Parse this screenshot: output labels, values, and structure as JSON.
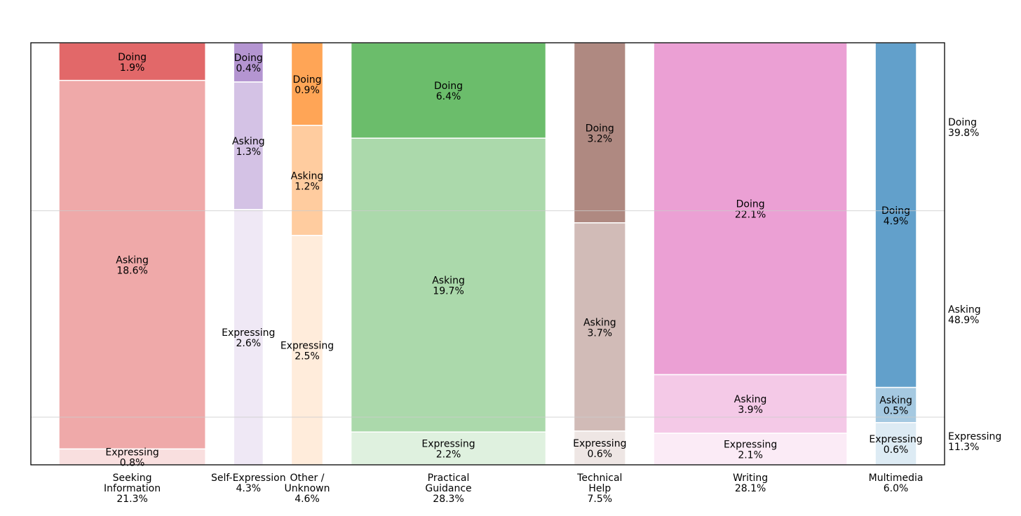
{
  "chart_data": {
    "type": "mosaic",
    "title": "",
    "categories": [
      {
        "name": "Seeking Information",
        "label_lines": [
          "Seeking",
          "Information"
        ],
        "total_label": "21.3%",
        "total": 21.3,
        "color": "#d62728",
        "segments": {
          "Doing": {
            "value": 1.9,
            "label": "1.9%"
          },
          "Asking": {
            "value": 18.6,
            "label": "18.6%"
          },
          "Expressing": {
            "value": 0.8,
            "label": "0.8%"
          }
        }
      },
      {
        "name": "Self-Expression",
        "label_lines": [
          "Self-Expression"
        ],
        "total_label": "4.3%",
        "total": 4.3,
        "color": "#9467bd",
        "segments": {
          "Doing": {
            "value": 0.4,
            "label": "0.4%"
          },
          "Asking": {
            "value": 1.3,
            "label": "1.3%"
          },
          "Expressing": {
            "value": 2.6,
            "label": "2.6%"
          }
        }
      },
      {
        "name": "Other / Unknown",
        "label_lines": [
          "Other /",
          "Unknown"
        ],
        "total_label": "4.6%",
        "total": 4.6,
        "color": "#ff7f0e",
        "segments": {
          "Doing": {
            "value": 0.9,
            "label": "0.9%"
          },
          "Asking": {
            "value": 1.2,
            "label": "1.2%"
          },
          "Expressing": {
            "value": 2.5,
            "label": "2.5%"
          }
        }
      },
      {
        "name": "Practical Guidance",
        "label_lines": [
          "Practical",
          "Guidance"
        ],
        "total_label": "28.3%",
        "total": 28.3,
        "color": "#2ca02c",
        "segments": {
          "Doing": {
            "value": 6.4,
            "label": "6.4%"
          },
          "Asking": {
            "value": 19.7,
            "label": "19.7%"
          },
          "Expressing": {
            "value": 2.2,
            "label": "2.2%"
          }
        }
      },
      {
        "name": "Technical Help",
        "label_lines": [
          "Technical",
          "Help"
        ],
        "total_label": "7.5%",
        "total": 7.5,
        "color": "#8c564b",
        "segments": {
          "Doing": {
            "value": 3.2,
            "label": "3.2%"
          },
          "Asking": {
            "value": 3.7,
            "label": "3.7%"
          },
          "Expressing": {
            "value": 0.6,
            "label": "0.6%"
          }
        }
      },
      {
        "name": "Writing",
        "label_lines": [
          "Writing"
        ],
        "total_label": "28.1%",
        "total": 28.1,
        "color": "#e377c2",
        "segments": {
          "Doing": {
            "value": 22.1,
            "label": "22.1%"
          },
          "Asking": {
            "value": 3.9,
            "label": "3.9%"
          },
          "Expressing": {
            "value": 2.1,
            "label": "2.1%"
          }
        }
      },
      {
        "name": "Multimedia",
        "label_lines": [
          "Multimedia"
        ],
        "total_label": "6.0%",
        "total": 6.0,
        "color": "#1f77b4",
        "segments": {
          "Doing": {
            "value": 4.9,
            "label": "4.9%"
          },
          "Asking": {
            "value": 0.5,
            "label": "0.5%"
          },
          "Expressing": {
            "value": 0.6,
            "label": "0.6%"
          }
        }
      }
    ],
    "segment_order": [
      "Doing",
      "Asking",
      "Expressing"
    ],
    "segment_opacity": {
      "Doing": 0.7,
      "Asking": 0.4,
      "Expressing": 0.15
    },
    "right_labels": [
      {
        "name": "Doing",
        "value": 39.8,
        "label": "39.8%"
      },
      {
        "name": "Asking",
        "value": 48.9,
        "label": "48.9%"
      },
      {
        "name": "Expressing",
        "value": 11.3,
        "label": "11.3%"
      }
    ],
    "xlabel": "",
    "ylabel": "",
    "ylim": [
      0,
      100
    ],
    "grid": false,
    "legend": "none"
  }
}
